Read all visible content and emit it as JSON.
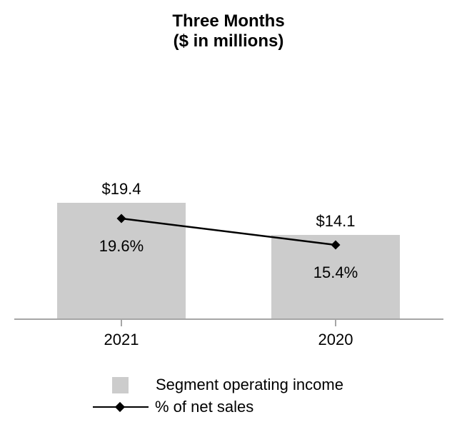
{
  "title": {
    "line1": "Three Months",
    "line2": "($ in millions)"
  },
  "colors": {
    "bar_fill": "#cccccc",
    "axis": "#a6a6a6",
    "line": "#000000",
    "text": "#000000"
  },
  "chart_data": {
    "type": "combo",
    "categories": [
      "2021",
      "2020"
    ],
    "series": [
      {
        "name": "Segment operating income",
        "type": "bar",
        "values": [
          19.4,
          14.1
        ],
        "labels": [
          "$19.4",
          "$14.1"
        ]
      },
      {
        "name": "% of net sales",
        "type": "line",
        "marker": "diamond",
        "values": [
          19.6,
          15.4
        ],
        "labels": [
          "19.6%",
          "15.4%"
        ]
      }
    ],
    "title": "Three Months ($ in millions)",
    "xlabel": "",
    "ylabel": "",
    "ylim": [
      0,
      21.8
    ],
    "grid": false,
    "legend_position": "bottom"
  },
  "legend": {
    "items": [
      {
        "swatch": "bar-square",
        "label": "Segment operating income"
      },
      {
        "swatch": "line-diamond",
        "label": "% of net sales"
      }
    ]
  }
}
